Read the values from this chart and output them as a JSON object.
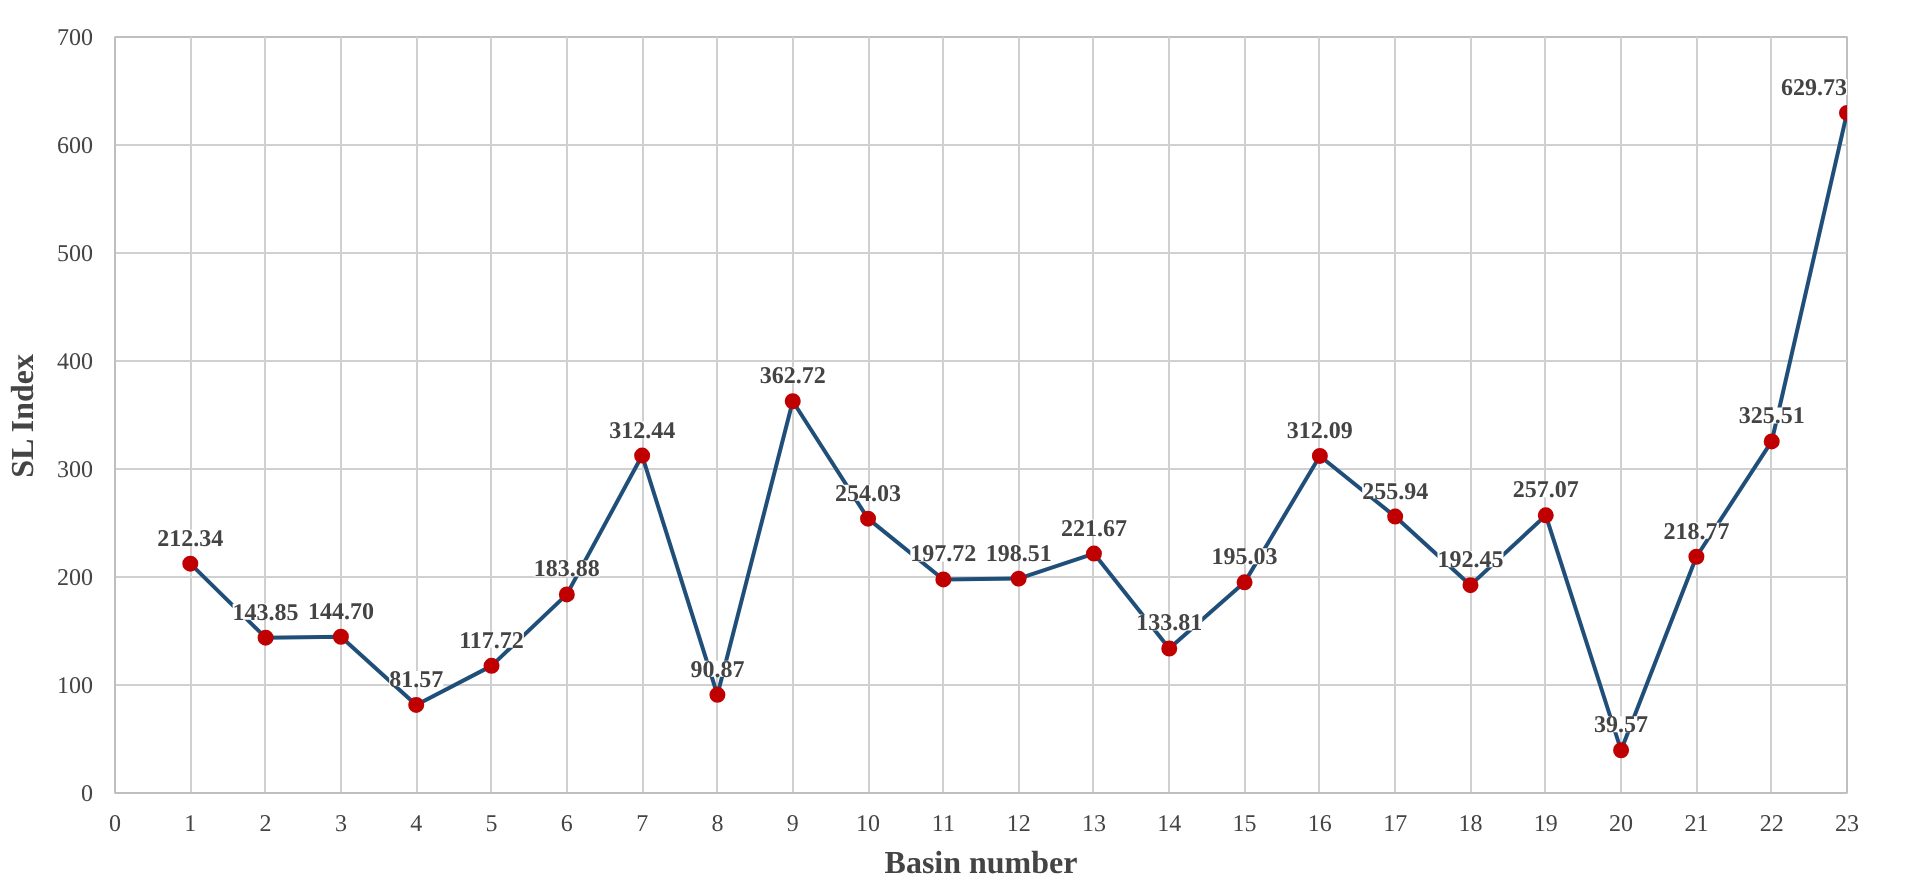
{
  "chart_data": {
    "type": "line",
    "xlabel": "Basin number",
    "ylabel": "SL Index",
    "x": [
      1,
      2,
      3,
      4,
      5,
      6,
      7,
      8,
      9,
      10,
      11,
      12,
      13,
      14,
      15,
      16,
      17,
      18,
      19,
      20,
      21,
      22,
      23
    ],
    "series": [
      {
        "color": "#1f4e79",
        "colors": [
          "#c00000",
          "#c00000",
          "#c00000",
          "#c00000",
          "#c00000",
          "#c00000",
          "#c00000",
          "#c00000",
          "#c00000",
          "#c00000",
          "#c00000",
          "#c00000",
          "#c00000",
          "#c00000",
          "#c00000",
          "#c00000",
          "#c00000",
          "#c00000",
          "#c00000",
          "#c00000",
          "#c00000",
          "#c00000",
          "#c00000"
        ],
        "values": [
          212.34,
          143.85,
          144.7,
          81.57,
          117.72,
          183.88,
          312.44,
          90.87,
          362.72,
          254.03,
          197.72,
          198.51,
          221.67,
          133.81,
          195.03,
          312.09,
          255.94,
          192.45,
          257.07,
          39.57,
          218.77,
          325.51,
          629.73
        ],
        "value_labels": [
          "212.34",
          "143.85",
          "144.70",
          "81.57",
          "117.72",
          "183.88",
          "312.44",
          "90.87",
          "362.72",
          "254.03",
          "197.72",
          "198.51",
          "221.67",
          "133.81",
          "195.03",
          "312.09",
          "255.94",
          "192.45",
          "257.07",
          "39.57",
          "218.77",
          "325.51",
          "629.73"
        ]
      }
    ],
    "xlim": [
      0,
      23
    ],
    "xticks": [
      0,
      1,
      2,
      3,
      4,
      5,
      6,
      7,
      8,
      9,
      10,
      11,
      12,
      13,
      14,
      15,
      16,
      17,
      18,
      19,
      20,
      21,
      22,
      23
    ],
    "ylim": [
      0,
      700
    ],
    "yticks": [
      0,
      100,
      200,
      300,
      400,
      500,
      600,
      700
    ],
    "grid": true,
    "marker": "circle",
    "line_style": "solid"
  }
}
